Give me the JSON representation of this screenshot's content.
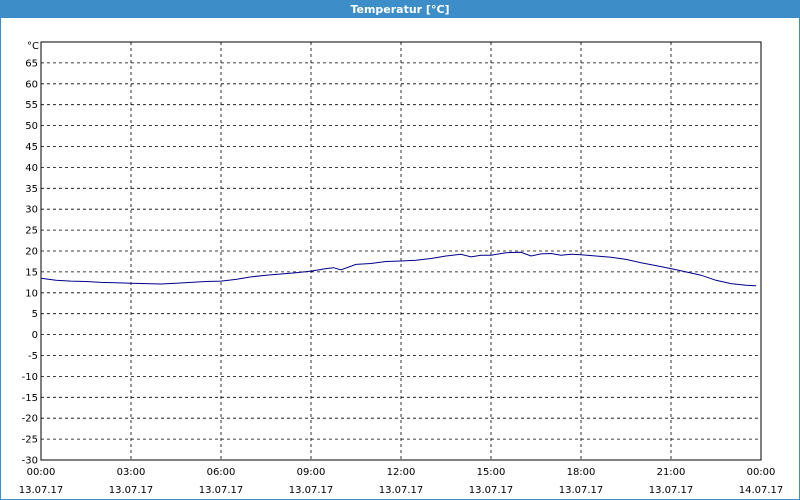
{
  "window": {
    "title": "Temperatur [°C]",
    "accent": "#3c8dc8"
  },
  "chart_data": {
    "type": "line",
    "title": "Temperatur [°C]",
    "ylabel": "°C",
    "xlabel": "",
    "ylim": [
      -30,
      70
    ],
    "yticks": [
      -30,
      -25,
      -20,
      -15,
      -10,
      -5,
      0,
      5,
      10,
      15,
      20,
      25,
      30,
      35,
      40,
      45,
      50,
      55,
      60,
      65
    ],
    "xlim": [
      "13.07.17 00:00",
      "14.07.17 00:00"
    ],
    "xticks": [
      {
        "time": "00:00",
        "date": "13.07.17"
      },
      {
        "time": "03:00",
        "date": "13.07.17"
      },
      {
        "time": "06:00",
        "date": "13.07.17"
      },
      {
        "time": "09:00",
        "date": "13.07.17"
      },
      {
        "time": "12:00",
        "date": "13.07.17"
      },
      {
        "time": "15:00",
        "date": "13.07.17"
      },
      {
        "time": "18:00",
        "date": "13.07.17"
      },
      {
        "time": "21:00",
        "date": "13.07.17"
      },
      {
        "time": "00:00",
        "date": "14.07.17"
      }
    ],
    "grid": true,
    "line_color": "#00008b",
    "series": [
      {
        "x": [
          "00:00",
          "00:30",
          "01:00",
          "01:30",
          "02:00",
          "02:30",
          "03:00",
          "03:30",
          "04:00",
          "04:30",
          "05:00",
          "05:30",
          "06:00",
          "06:30",
          "07:00",
          "07:30",
          "08:00",
          "08:30",
          "09:00",
          "09:30",
          "09:45",
          "10:00",
          "10:30",
          "11:00",
          "11:30",
          "12:00",
          "12:30",
          "13:00",
          "13:30",
          "14:00",
          "14:20",
          "14:40",
          "15:00",
          "15:30",
          "16:00",
          "16:20",
          "16:40",
          "17:00",
          "17:20",
          "17:40",
          "18:00",
          "18:30",
          "19:00",
          "19:30",
          "20:00",
          "20:30",
          "21:00",
          "21:30",
          "22:00",
          "22:30",
          "23:00",
          "23:30",
          "23:50"
        ],
        "values": [
          13.5,
          13.0,
          12.8,
          12.7,
          12.5,
          12.4,
          12.3,
          12.2,
          12.1,
          12.3,
          12.5,
          12.7,
          12.8,
          13.2,
          13.8,
          14.2,
          14.5,
          14.8,
          15.2,
          15.8,
          16.0,
          15.5,
          16.8,
          17.0,
          17.5,
          17.6,
          17.8,
          18.2,
          18.8,
          19.2,
          18.6,
          19.0,
          19.0,
          19.6,
          19.7,
          18.8,
          19.3,
          19.4,
          19.0,
          19.2,
          19.1,
          18.8,
          18.5,
          18.0,
          17.2,
          16.5,
          15.8,
          15.0,
          14.2,
          13.0,
          12.2,
          11.8,
          11.7
        ]
      }
    ]
  }
}
